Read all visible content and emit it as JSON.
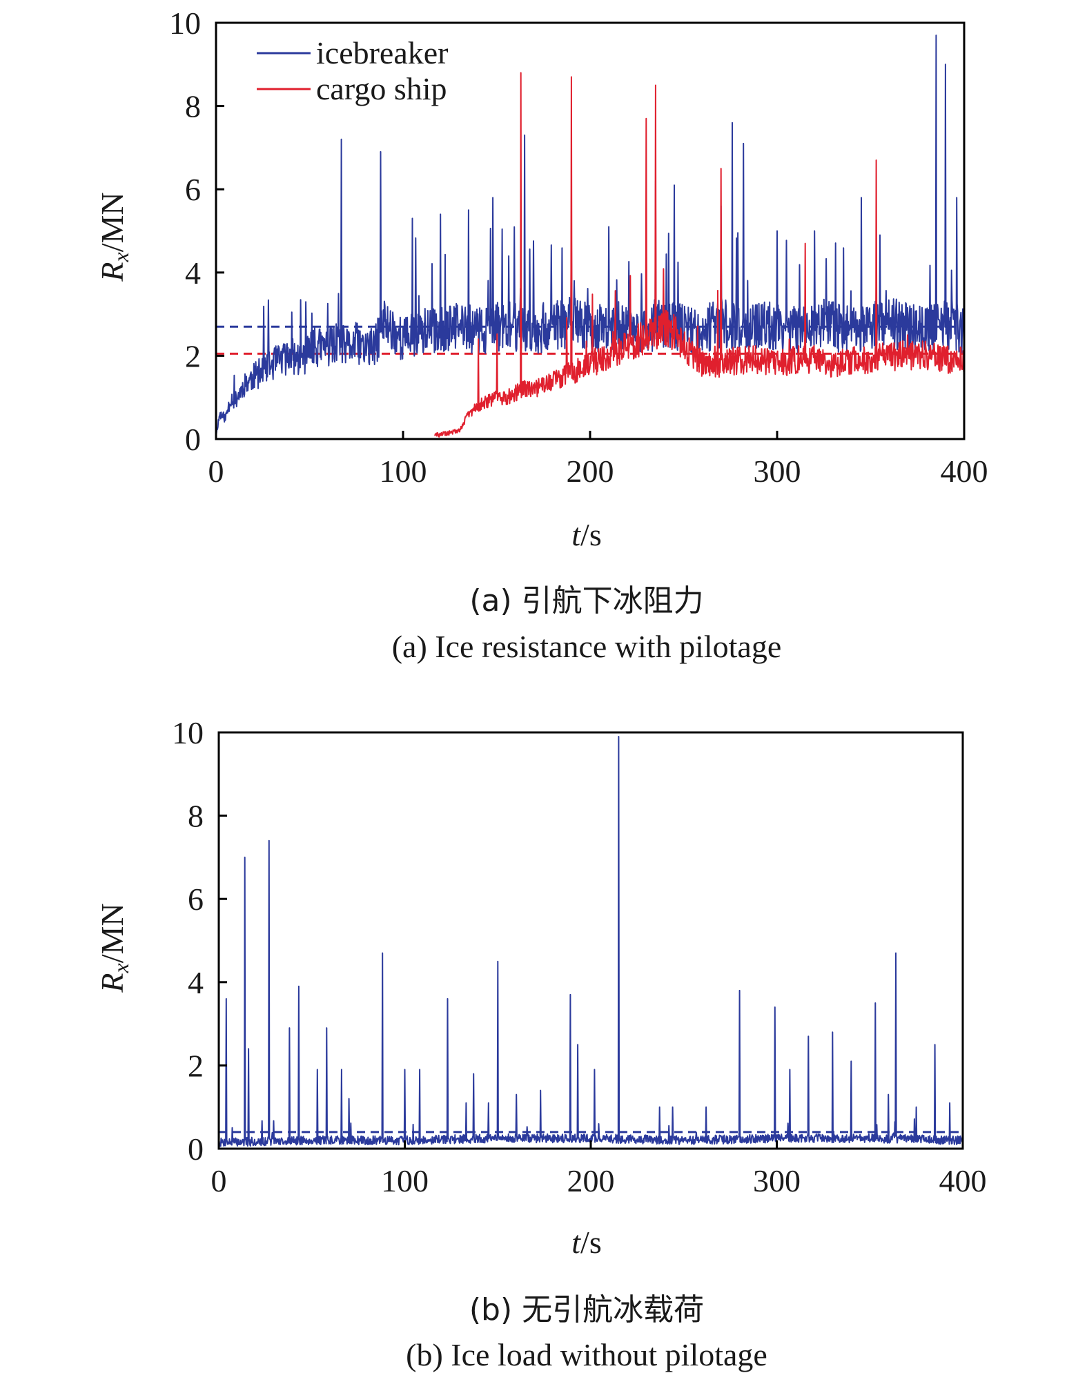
{
  "colors": {
    "icebreaker": "#2b3a9c",
    "cargo_ship": "#e0202e",
    "axis": "#000000"
  },
  "chart_data": [
    {
      "type": "line",
      "panel": "a",
      "caption_cn": "(a) 引航下冰阻力",
      "caption_en": "(a) Ice resistance with pilotage",
      "xlabel_var": "t",
      "xlabel_unit": "/s",
      "ylabel_var": "R",
      "ylabel_sub": "x",
      "ylabel_unit": "/MN",
      "xlim": [
        0,
        400
      ],
      "ylim": [
        0,
        10
      ],
      "xticks": [
        "0",
        "100",
        "200",
        "300",
        "400"
      ],
      "yticks": [
        "0",
        "2",
        "4",
        "6",
        "8",
        "10"
      ],
      "legend": {
        "position": "top-left",
        "entries": [
          "icebreaker",
          "cargo ship"
        ]
      },
      "mean_lines": [
        {
          "series": "icebreaker",
          "value": 2.7
        },
        {
          "series": "cargo ship",
          "value": 2.05
        }
      ],
      "series": [
        {
          "name": "icebreaker",
          "x": [
            0,
            2,
            5,
            8,
            10,
            15,
            20,
            25,
            30,
            35,
            40,
            45,
            50,
            55,
            60,
            65,
            70,
            75,
            80,
            85,
            88,
            90,
            95,
            100,
            105,
            110,
            115,
            120,
            130,
            140,
            150,
            160,
            170,
            180,
            190,
            200,
            210,
            220,
            230,
            240,
            250,
            260,
            270,
            280,
            290,
            300,
            310,
            320,
            330,
            340,
            350,
            360,
            370,
            380,
            390,
            395,
            400
          ],
          "y": [
            0.1,
            0.6,
            0.5,
            1.0,
            0.9,
            1.3,
            1.5,
            1.6,
            1.8,
            1.9,
            2.0,
            1.9,
            2.1,
            2.2,
            2.2,
            2.3,
            2.2,
            2.3,
            2.2,
            2.2,
            2.6,
            2.8,
            2.6,
            2.4,
            2.5,
            2.6,
            2.6,
            2.6,
            2.7,
            2.6,
            2.7,
            2.7,
            2.6,
            2.7,
            2.8,
            2.7,
            2.6,
            2.7,
            2.6,
            2.8,
            2.7,
            2.6,
            2.8,
            2.6,
            2.7,
            2.7,
            2.6,
            2.8,
            2.7,
            2.6,
            2.7,
            2.8,
            2.7,
            2.6,
            2.8,
            2.7,
            2.6
          ],
          "spikes": [
            [
              67,
              7.2
            ],
            [
              88,
              6.9
            ],
            [
              105,
              5.3
            ],
            [
              120,
              5.4
            ],
            [
              135,
              5.5
            ],
            [
              148,
              5.8
            ],
            [
              165,
              7.3
            ],
            [
              190,
              5.1
            ],
            [
              210,
              5.1
            ],
            [
              235,
              6.2
            ],
            [
              245,
              6.1
            ],
            [
              270,
              5.6
            ],
            [
              276,
              7.6
            ],
            [
              282,
              7.1
            ],
            [
              300,
              5.0
            ],
            [
              320,
              5.0
            ],
            [
              345,
              5.8
            ],
            [
              355,
              4.9
            ],
            [
              385,
              9.7
            ],
            [
              390,
              9.0
            ],
            [
              396,
              5.8
            ]
          ]
        },
        {
          "name": "cargo ship",
          "x": [
            117,
            120,
            125,
            130,
            135,
            140,
            145,
            150,
            155,
            160,
            165,
            170,
            175,
            180,
            185,
            190,
            200,
            210,
            220,
            230,
            240,
            245,
            250,
            255,
            260,
            270,
            280,
            290,
            300,
            310,
            320,
            330,
            340,
            350,
            360,
            370,
            380,
            390,
            400
          ],
          "y": [
            0.1,
            0.1,
            0.15,
            0.2,
            0.6,
            0.8,
            0.9,
            1.0,
            1.0,
            1.1,
            1.2,
            1.2,
            1.3,
            1.4,
            1.5,
            1.6,
            1.8,
            2.0,
            2.2,
            2.5,
            2.7,
            2.6,
            2.3,
            2.0,
            1.8,
            1.8,
            1.9,
            1.9,
            1.8,
            1.9,
            1.9,
            1.8,
            1.9,
            1.9,
            2.0,
            2.0,
            2.0,
            1.9,
            1.9
          ],
          "spikes": [
            [
              163,
              8.8
            ],
            [
              190,
              8.7
            ],
            [
              230,
              7.7
            ],
            [
              235,
              8.5
            ],
            [
              270,
              6.5
            ],
            [
              315,
              4.7
            ],
            [
              353,
              6.7
            ]
          ]
        }
      ]
    },
    {
      "type": "line",
      "panel": "b",
      "caption_cn": "(b) 无引航冰载荷",
      "caption_en": "(b) Ice load without pilotage",
      "xlabel_var": "t",
      "xlabel_unit": "/s",
      "ylabel_var": "R",
      "ylabel_sub": "x",
      "ylabel_unit": "/MN",
      "xlim": [
        0,
        400
      ],
      "ylim": [
        0,
        10
      ],
      "xticks": [
        "0",
        "100",
        "200",
        "300",
        "400"
      ],
      "yticks": [
        "0",
        "2",
        "4",
        "6",
        "8",
        "10"
      ],
      "mean_lines": [
        {
          "series": "icebreaker",
          "value": 0.4
        }
      ],
      "series": [
        {
          "name": "icebreaker",
          "x": [
            0,
            50,
            100,
            150,
            200,
            250,
            300,
            350,
            400
          ],
          "y": [
            0.15,
            0.2,
            0.2,
            0.25,
            0.25,
            0.2,
            0.25,
            0.25,
            0.2
          ],
          "spikes": [
            [
              4,
              3.6
            ],
            [
              14,
              7.0
            ],
            [
              16,
              2.4
            ],
            [
              27,
              7.4
            ],
            [
              38,
              2.9
            ],
            [
              43,
              3.9
            ],
            [
              53,
              1.9
            ],
            [
              58,
              2.9
            ],
            [
              66,
              1.9
            ],
            [
              70,
              1.2
            ],
            [
              88,
              4.7
            ],
            [
              100,
              1.9
            ],
            [
              108,
              1.9
            ],
            [
              123,
              3.6
            ],
            [
              133,
              1.1
            ],
            [
              137,
              1.8
            ],
            [
              145,
              1.1
            ],
            [
              150,
              4.5
            ],
            [
              160,
              1.3
            ],
            [
              173,
              1.4
            ],
            [
              189,
              3.7
            ],
            [
              193,
              2.5
            ],
            [
              202,
              1.9
            ],
            [
              215,
              9.9
            ],
            [
              237,
              1.0
            ],
            [
              244,
              1.0
            ],
            [
              262,
              1.0
            ],
            [
              280,
              3.8
            ],
            [
              299,
              3.4
            ],
            [
              307,
              1.9
            ],
            [
              317,
              2.7
            ],
            [
              330,
              2.8
            ],
            [
              340,
              2.1
            ],
            [
              353,
              3.5
            ],
            [
              360,
              1.3
            ],
            [
              364,
              4.7
            ],
            [
              375,
              1.0
            ],
            [
              385,
              2.5
            ],
            [
              393,
              1.1
            ]
          ]
        }
      ]
    }
  ]
}
